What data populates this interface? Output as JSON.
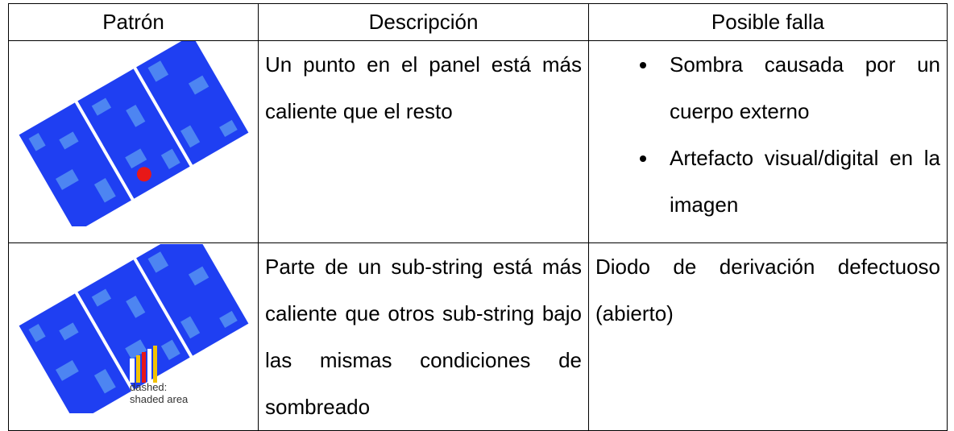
{
  "table": {
    "header": [
      "Patrón",
      "Descripción",
      "Posible falla"
    ],
    "rows": [
      {
        "description": "Un punto en el panel está más caliente que el resto",
        "failures": [
          "Sombra causada por un cuerpo externo",
          "Artefacto visual/digital en la imagen"
        ]
      },
      {
        "image_label": [
          "dashed:",
          "shaded area"
        ],
        "description": "Parte de un sub-string está más caliente que otros sub-string bajo las mismas condiciones de sombreado",
        "failure": "Diodo de derivación defectuoso (abierto)"
      }
    ]
  }
}
